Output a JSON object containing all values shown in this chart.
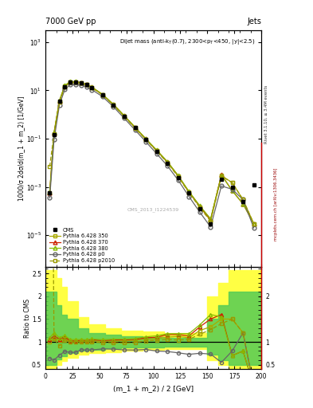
{
  "title_left": "7000 GeV pp",
  "title_right": "Jets",
  "annotation": "Dijet mass (anti-k$_{T}$(0.7), 2300<p$_{T}$<450, |y|<2.5)",
  "watermark": "CMS_2013_I1224539",
  "xlabel": "(m_1 + m_2) / 2 [GeV]",
  "ylabel_main": "1000/σ 2dσ/d(m_1 + m_2) [1/GeV]",
  "ylabel_ratio": "Ratio to CMS",
  "xlim": [
    0,
    200
  ],
  "ylim_main": [
    5e-07,
    3000.0
  ],
  "ylim_ratio": [
    0.4,
    2.65
  ],
  "rivet_label": "Rivet 3.1.10, ≥ 3.4M events",
  "mcplots_label": "mcplots.cern.ch [arXiv:1306.3436]",
  "x": [
    4,
    8,
    13,
    18,
    23,
    28,
    33,
    38,
    43,
    53,
    63,
    73,
    83,
    93,
    103,
    113,
    123,
    133,
    143,
    153,
    163,
    173,
    183,
    193
  ],
  "cms_y": [
    0.00055,
    0.15,
    3.5,
    14.0,
    22.0,
    22.0,
    20.0,
    17.0,
    13.0,
    6.5,
    2.5,
    0.85,
    0.28,
    0.09,
    0.03,
    0.0095,
    0.0025,
    0.00055,
    0.00012,
    3e-05,
    0.002,
    0.001,
    0.00025,
    0.0012
  ],
  "p350_y": [
    0.00055,
    0.16,
    3.6,
    15.0,
    22.0,
    22.0,
    20.5,
    17.3,
    13.3,
    6.6,
    2.55,
    0.87,
    0.29,
    0.095,
    0.032,
    0.0105,
    0.0028,
    0.0006,
    0.00015,
    4e-05,
    0.003,
    0.0015,
    0.0003,
    3e-05
  ],
  "p370_y": [
    0.00058,
    0.17,
    3.7,
    15.5,
    22.5,
    22.5,
    20.8,
    17.6,
    13.6,
    6.7,
    2.6,
    0.89,
    0.295,
    0.098,
    0.033,
    0.011,
    0.0029,
    0.00062,
    0.00016,
    4.5e-05,
    0.0032,
    0.0007,
    0.0002,
    3e-05
  ],
  "p380_y": [
    0.0006,
    0.18,
    3.8,
    16.0,
    23.0,
    23.0,
    21.0,
    17.8,
    13.8,
    6.8,
    2.65,
    0.9,
    0.3,
    0.1,
    0.034,
    0.0112,
    0.00295,
    0.00065,
    0.000165,
    4.8e-05,
    0.0031,
    0.0007,
    0.0002,
    3e-05
  ],
  "pp0_y": [
    0.00035,
    0.09,
    2.5,
    11.0,
    17.0,
    17.0,
    16.5,
    14.0,
    10.7,
    5.5,
    2.1,
    0.7,
    0.23,
    0.075,
    0.024,
    0.0075,
    0.0019,
    0.0004,
    9e-05,
    2.2e-05,
    0.0011,
    0.0008,
    0.0003,
    2e-05
  ],
  "pp2010_y": [
    0.007,
    0.16,
    3.2,
    14.5,
    22.0,
    22.0,
    20.0,
    17.0,
    13.0,
    6.4,
    2.45,
    0.83,
    0.275,
    0.092,
    0.031,
    0.01,
    0.0026,
    0.00058,
    0.00014,
    3.8e-05,
    0.0028,
    0.0015,
    0.0003,
    3e-05
  ],
  "color_p350": "#aaaa00",
  "color_p370": "#cc2200",
  "color_p380": "#88bb00",
  "color_pp0": "#666666",
  "color_pp2010": "#999900",
  "band_x_edges": [
    0,
    5,
    10,
    15,
    20,
    30,
    40,
    55,
    70,
    90,
    110,
    130,
    150,
    160,
    170,
    200
  ],
  "band_yellow_y1": [
    0.42,
    0.42,
    0.5,
    0.58,
    0.65,
    0.72,
    0.76,
    0.78,
    0.8,
    0.82,
    0.84,
    0.84,
    0.6,
    0.5,
    0.42,
    0.42
  ],
  "band_yellow_y2": [
    2.58,
    2.58,
    2.4,
    2.2,
    1.9,
    1.55,
    1.38,
    1.3,
    1.25,
    1.22,
    1.2,
    1.2,
    2.0,
    2.3,
    2.58,
    2.58
  ],
  "band_green_y1": [
    0.5,
    0.5,
    0.62,
    0.68,
    0.75,
    0.8,
    0.83,
    0.86,
    0.88,
    0.88,
    0.9,
    0.9,
    0.72,
    0.6,
    0.5,
    0.5
  ],
  "band_green_y2": [
    2.1,
    2.1,
    1.8,
    1.6,
    1.5,
    1.3,
    1.2,
    1.15,
    1.12,
    1.1,
    1.08,
    1.08,
    1.5,
    1.8,
    2.1,
    2.1
  ]
}
